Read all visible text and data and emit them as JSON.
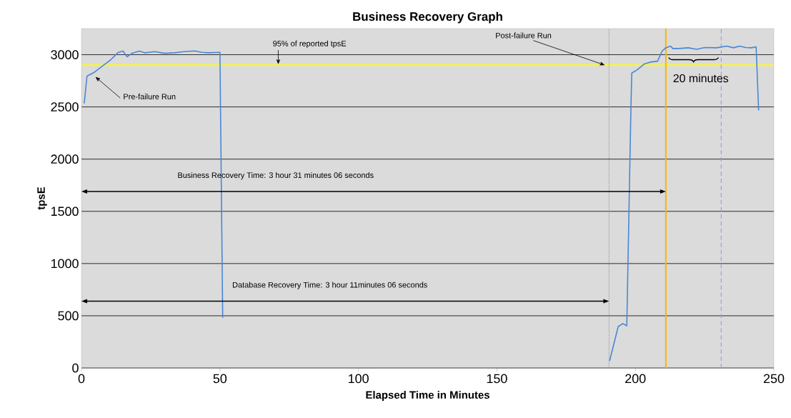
{
  "chart_data": {
    "type": "line",
    "title": "Business Recovery Graph",
    "xlabel": "Elapsed Time in Minutes",
    "ylabel": "tpsE",
    "xlim": [
      0,
      250
    ],
    "ylim": [
      0,
      3250
    ],
    "xticks": [
      0,
      50,
      100,
      150,
      200,
      250
    ],
    "yticks": [
      0,
      500,
      1000,
      1500,
      2000,
      2500,
      3000
    ],
    "grid": "y",
    "marker": "none",
    "line_style": "solid",
    "series": [
      {
        "color": "#4a86d4",
        "x": [
          1,
          2,
          4.5,
          7.5,
          10.6,
          13.2,
          15,
          16.5,
          18.3,
          20.9,
          23,
          26.5,
          30,
          33.5,
          37,
          40.9,
          43.5,
          45.7,
          50,
          51,
          120,
          190.7,
          193.8,
          195.5,
          196.9,
          198.4,
          198.7,
          200.6,
          203.2,
          205.4,
          208,
          209.7,
          211,
          212.7,
          213.5,
          215.7,
          219.1,
          222.1,
          225.1,
          229.4,
          232.9,
          235.5,
          237.6,
          239.8,
          241.9,
          243.6,
          244.5
        ],
        "values": [
          2534,
          2795,
          2829,
          2890,
          2952,
          3020,
          3034,
          2980,
          3014,
          3034,
          3018,
          3029,
          3013,
          3018,
          3029,
          3036,
          3022,
          3018,
          3022,
          480,
          null,
          68,
          397,
          425,
          404,
          2500,
          2824,
          2854,
          2911,
          2929,
          2938,
          3036,
          3066,
          3082,
          3059,
          3059,
          3066,
          3052,
          3069,
          3066,
          3082,
          3066,
          3082,
          3069,
          3066,
          3075,
          2466
        ]
      }
    ],
    "ref_lines": [
      {
        "axis": "y",
        "value": 2900,
        "color": "#ffff00",
        "line_style": "solid"
      },
      {
        "axis": "x",
        "value": 190.5,
        "color": "#808080",
        "line_style": "dotted"
      },
      {
        "axis": "x",
        "value": 211,
        "color": "#f5b800",
        "line_style": "solid"
      },
      {
        "axis": "x",
        "value": 231,
        "color": "#9999ff",
        "line_style": "dashed"
      }
    ],
    "annotations": [
      "Business Recovery Time: 3 hour  31 minutes 06 seconds",
      "Database Recovery Time: 3 hour 11minutes 06 seconds",
      "95% of reported tpsE",
      "Pre-failure Run",
      {
        "text": "Post-failure Run",
        "x": 189,
        "y": 2900
      },
      "20 minutes"
    ]
  }
}
